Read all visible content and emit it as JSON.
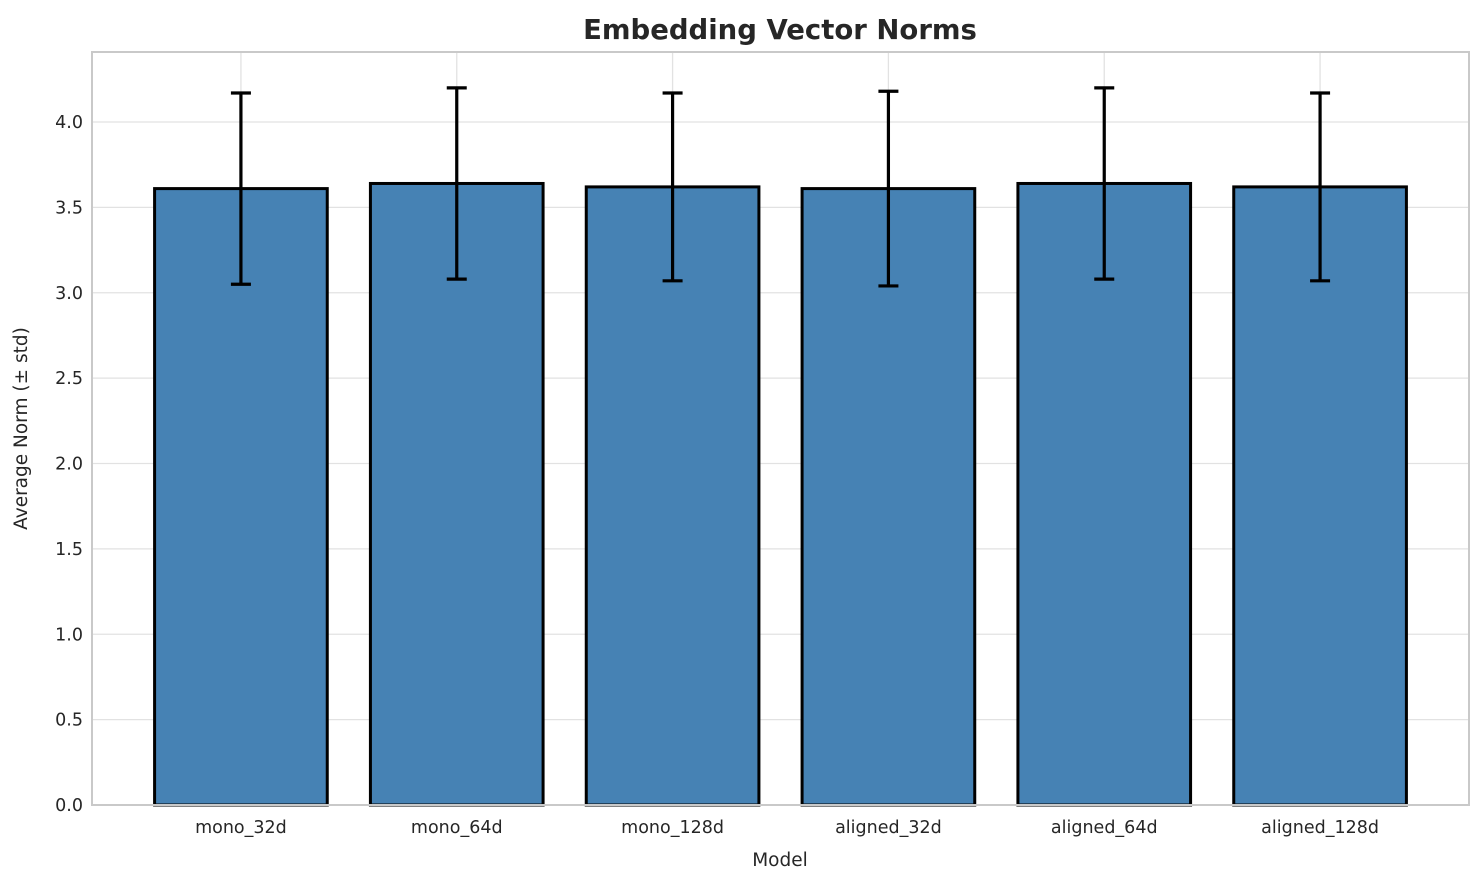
{
  "chart_data": {
    "type": "bar",
    "title": "Embedding Vector Norms",
    "xlabel": "Model",
    "ylabel": "Average Norm (± std)",
    "categories": [
      "mono_32d",
      "mono_64d",
      "mono_128d",
      "aligned_32d",
      "aligned_64d",
      "aligned_128d"
    ],
    "values": [
      3.61,
      3.64,
      3.62,
      3.61,
      3.64,
      3.62
    ],
    "errors": [
      0.56,
      0.56,
      0.55,
      0.57,
      0.56,
      0.55
    ],
    "error_tops": [
      4.17,
      4.2,
      4.17,
      4.18,
      4.2,
      4.17
    ],
    "error_bottoms": [
      3.05,
      3.08,
      3.07,
      3.04,
      3.08,
      3.07
    ],
    "yticks": [
      0.0,
      0.5,
      1.0,
      1.5,
      2.0,
      2.5,
      3.0,
      3.5,
      4.0
    ],
    "ylim": [
      0,
      4.41
    ],
    "xlim": [
      -0.69,
      5.69
    ],
    "bar_width": 0.8,
    "grid": "both",
    "legend": "none",
    "colors": {
      "bar_fill": "#4682b4",
      "bar_edge": "#000000",
      "error_bar": "#000000",
      "grid_line": "#e2e2e2",
      "spine": "#c9c9c9",
      "text": "#262626"
    }
  }
}
